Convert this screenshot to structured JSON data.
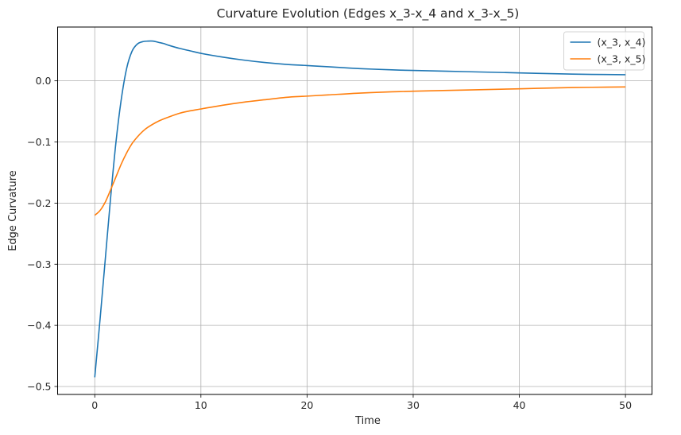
{
  "chart_data": {
    "type": "line",
    "title": "Curvature Evolution (Edges x_3-x_4 and x_3-x_5)",
    "xlabel": "Time",
    "ylabel": "Edge Curvature",
    "xlim": [
      -3.5,
      52.5
    ],
    "ylim": [
      -0.513,
      0.088
    ],
    "x_ticks": [
      0,
      10,
      20,
      30,
      40,
      50
    ],
    "x_tick_labels": [
      "0",
      "10",
      "20",
      "30",
      "40",
      "50"
    ],
    "y_ticks": [
      -0.5,
      -0.4,
      -0.3,
      -0.2,
      -0.1,
      0.0
    ],
    "y_tick_labels": [
      "−0.5",
      "−0.4",
      "−0.3",
      "−0.2",
      "−0.1",
      "0.0"
    ],
    "grid": true,
    "legend_position": "top-right",
    "series": [
      {
        "name": "(x_3, x_4)",
        "color": "#1f77b4",
        "x": [
          0,
          0.5,
          1,
          1.5,
          2,
          2.5,
          3,
          3.5,
          4,
          4.5,
          5,
          5.5,
          6,
          6.5,
          7,
          8,
          9,
          10,
          12,
          14,
          16,
          18,
          20,
          22,
          25,
          28,
          30,
          35,
          40,
          45,
          50
        ],
        "y": [
          -0.485,
          -0.39,
          -0.29,
          -0.19,
          -0.1,
          -0.03,
          0.02,
          0.048,
          0.06,
          0.064,
          0.065,
          0.065,
          0.063,
          0.061,
          0.058,
          0.053,
          0.049,
          0.045,
          0.039,
          0.034,
          0.03,
          0.027,
          0.025,
          0.023,
          0.02,
          0.018,
          0.017,
          0.015,
          0.013,
          0.011,
          0.01
        ]
      },
      {
        "name": "(x_3, x_5)",
        "color": "#ff7f0e",
        "x": [
          0,
          0.5,
          1,
          1.5,
          2,
          2.5,
          3,
          3.5,
          4,
          4.5,
          5,
          6,
          7,
          8,
          9,
          10,
          12,
          14,
          16,
          18,
          20,
          22,
          25,
          28,
          30,
          35,
          40,
          45,
          50
        ],
        "y": [
          -0.22,
          -0.212,
          -0.198,
          -0.178,
          -0.157,
          -0.136,
          -0.118,
          -0.103,
          -0.092,
          -0.083,
          -0.076,
          -0.066,
          -0.059,
          -0.053,
          -0.049,
          -0.046,
          -0.04,
          -0.035,
          -0.031,
          -0.027,
          -0.025,
          -0.023,
          -0.02,
          -0.018,
          -0.017,
          -0.015,
          -0.013,
          -0.011,
          -0.01
        ]
      }
    ]
  }
}
